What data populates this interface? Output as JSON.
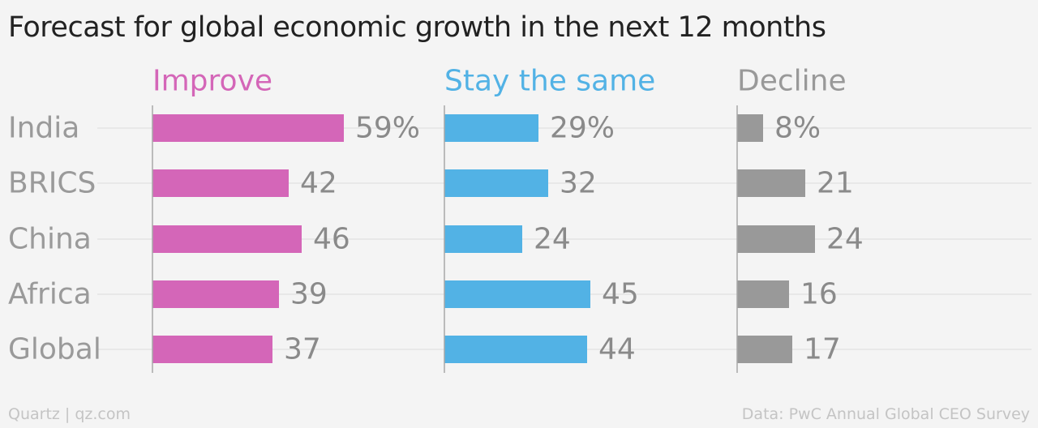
{
  "title": "Forecast for global economic growth in the next 12 months",
  "footer": {
    "source_left": "Quartz | qz.com",
    "source_right": "Data: PwC Annual Global CEO Survey"
  },
  "colors": {
    "improve": "#d466b8",
    "stay": "#52b2e5",
    "decline": "#999999",
    "row_label": "#9a9a9a",
    "value_label": "#8a8a8a",
    "gridline": "#e4e4e4",
    "axis": "#a8a8a8"
  },
  "chart_data": {
    "type": "bar",
    "orientation": "horizontal",
    "layout": "small-multiples",
    "categories": [
      "India",
      "BRICS",
      "China",
      "Africa",
      "Global"
    ],
    "series": [
      {
        "name": "Improve",
        "values": [
          59,
          42,
          46,
          39,
          37
        ],
        "labels": [
          "59%",
          "42",
          "46",
          "39",
          "37"
        ]
      },
      {
        "name": "Stay the same",
        "values": [
          29,
          32,
          24,
          45,
          44
        ],
        "labels": [
          "29%",
          "32",
          "24",
          "45",
          "44"
        ]
      },
      {
        "name": "Decline",
        "values": [
          8,
          21,
          24,
          16,
          17
        ],
        "labels": [
          "8%",
          "21",
          "24",
          "16",
          "17"
        ]
      }
    ],
    "xlim": [
      0,
      100
    ],
    "grid": true
  }
}
